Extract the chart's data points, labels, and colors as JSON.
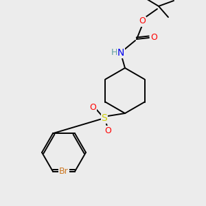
{
  "background_color": "#ececec",
  "atom_colors": {
    "C": "#000000",
    "H": "#5f9ea0",
    "N": "#0000ee",
    "O": "#ff0000",
    "S": "#cccc00",
    "Br": "#cc7722"
  },
  "bond_color": "#000000",
  "bond_lw": 1.4,
  "figsize": [
    3.0,
    3.0
  ],
  "dpi": 100,
  "xlim": [
    0,
    300
  ],
  "ylim": [
    0,
    300
  ]
}
